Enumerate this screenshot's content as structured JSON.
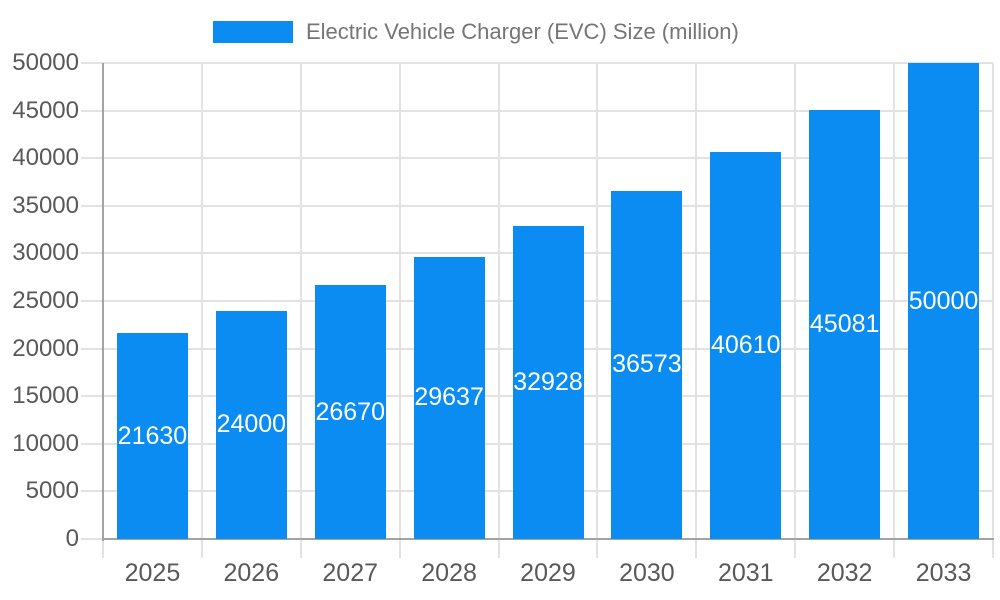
{
  "chart_data": {
    "type": "bar",
    "title": "Electric Vehicle Charger (EVC) Size (million)",
    "legend": {
      "position": "top",
      "entries": [
        "Electric Vehicle Charger (EVC) Size (million)"
      ]
    },
    "categories": [
      "2025",
      "2026",
      "2027",
      "2028",
      "2029",
      "2030",
      "2031",
      "2032",
      "2033"
    ],
    "values": [
      21630,
      24000,
      26670,
      29637,
      32928,
      36573,
      40610,
      45081,
      50000
    ],
    "value_labels_shown": true,
    "xlabel": "",
    "ylabel": "",
    "ylim": [
      0,
      50000
    ],
    "yticks": [
      0,
      5000,
      10000,
      15000,
      20000,
      25000,
      30000,
      35000,
      40000,
      45000,
      50000
    ],
    "grid": true,
    "colors": {
      "bar": "#0a8cf2",
      "gridline": "#e2e2e2",
      "axis_line": "#a3a3a3",
      "tick_label_text": "#595959",
      "legend_text": "#757575",
      "value_label_text": "#ffffff",
      "background": "#ffffff"
    }
  }
}
